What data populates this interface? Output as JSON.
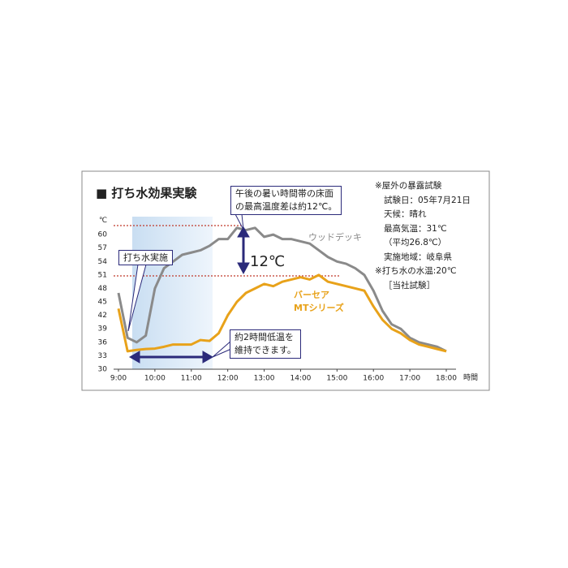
{
  "chart_data": {
    "type": "line",
    "title": "■ 打ち水効果実験",
    "y_unit_label": "℃",
    "x_unit_label": "時間",
    "x": [
      9,
      9.25,
      9.5,
      9.75,
      10,
      10.25,
      10.5,
      10.75,
      11,
      11.25,
      11.5,
      11.75,
      12,
      12.25,
      12.5,
      12.75,
      13,
      13.25,
      13.5,
      13.75,
      14,
      14.25,
      14.5,
      14.75,
      15,
      15.25,
      15.5,
      15.75,
      16,
      16.25,
      16.5,
      16.75,
      17,
      17.25,
      17.5,
      17.75,
      18
    ],
    "series": [
      {
        "name": "ウッドデッキ",
        "color": "#8a8a8a",
        "values": [
          47,
          37,
          36,
          37.5,
          48,
          52.5,
          54,
          55.5,
          56,
          56.5,
          57.5,
          59,
          59,
          61.5,
          61,
          61.5,
          59.5,
          60,
          59,
          59,
          58.5,
          58,
          56.5,
          55,
          54,
          53.5,
          52.5,
          51,
          47.5,
          43,
          40,
          39,
          37,
          36,
          35.5,
          35,
          34
        ]
      },
      {
        "name": "バーセア\nMTシリーズ",
        "color": "#e8a21a",
        "values": [
          43.5,
          34,
          34.3,
          34.5,
          34.6,
          35,
          35.5,
          35.5,
          35.5,
          36.5,
          36.3,
          38,
          42,
          45,
          47,
          48,
          49,
          48.5,
          49.5,
          50,
          50.5,
          50,
          51,
          49.5,
          49,
          48.5,
          48,
          47.5,
          44,
          41,
          39,
          38,
          36.5,
          35.5,
          35,
          34.5,
          34
        ]
      }
    ],
    "xlim": [
      9,
      18
    ],
    "xticks": [
      {
        "value": 9,
        "label": "9:00"
      },
      {
        "value": 10,
        "label": "10:00"
      },
      {
        "value": 11,
        "label": "11:00"
      },
      {
        "value": 12,
        "label": "12:00"
      },
      {
        "value": 13,
        "label": "13:00"
      },
      {
        "value": 14,
        "label": "14:00"
      },
      {
        "value": 15,
        "label": "15:00"
      },
      {
        "value": 16,
        "label": "16:00"
      },
      {
        "value": 17,
        "label": "17:00"
      },
      {
        "value": 18,
        "label": "18:00"
      }
    ],
    "ylim": [
      30,
      64
    ],
    "yticks": [
      30,
      33,
      36,
      39,
      42,
      45,
      48,
      51,
      54,
      57,
      60
    ],
    "grid": false,
    "annotations": {
      "difference_callout": "午後の暑い時間帯の床面\nの最高温度差は約12℃。",
      "difference_value": "12℃",
      "watering_callout": "打ち水実施",
      "duration_callout": "約2時間低温を\n維持できます。",
      "notes": [
        "※屋外の暴露試験",
        "試験日：05年7月21日",
        "天候：晴れ",
        "最高気温：31℃",
        "（平均26.8℃）",
        "実施地域：岐阜県",
        "※打ち水の水温:20℃",
        "［当社試験］"
      ]
    }
  }
}
